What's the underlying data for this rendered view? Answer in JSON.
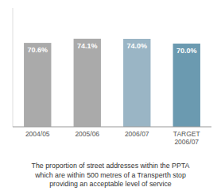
{
  "chart_data": {
    "type": "bar",
    "caption": "The proportion of street addresses within the PPTA\nwhich are within 500 metres of a Transperth stop\nproviding an acceptable level of service",
    "categories": [
      "2004/05",
      "2005/06",
      "2006/07",
      "TARGET\n2006/07"
    ],
    "values": [
      70.6,
      74.1,
      74.0,
      70.0
    ],
    "value_labels": [
      "70.6%",
      "74.1%",
      "74.0%",
      "70.0%"
    ],
    "colors": [
      "#aaaaaa",
      "#aaaaaa",
      "#9ab5c5",
      "#6b9ab0"
    ],
    "ylim": [
      0,
      100
    ],
    "data_labels": true,
    "tick_labels": "x",
    "grid": false
  }
}
